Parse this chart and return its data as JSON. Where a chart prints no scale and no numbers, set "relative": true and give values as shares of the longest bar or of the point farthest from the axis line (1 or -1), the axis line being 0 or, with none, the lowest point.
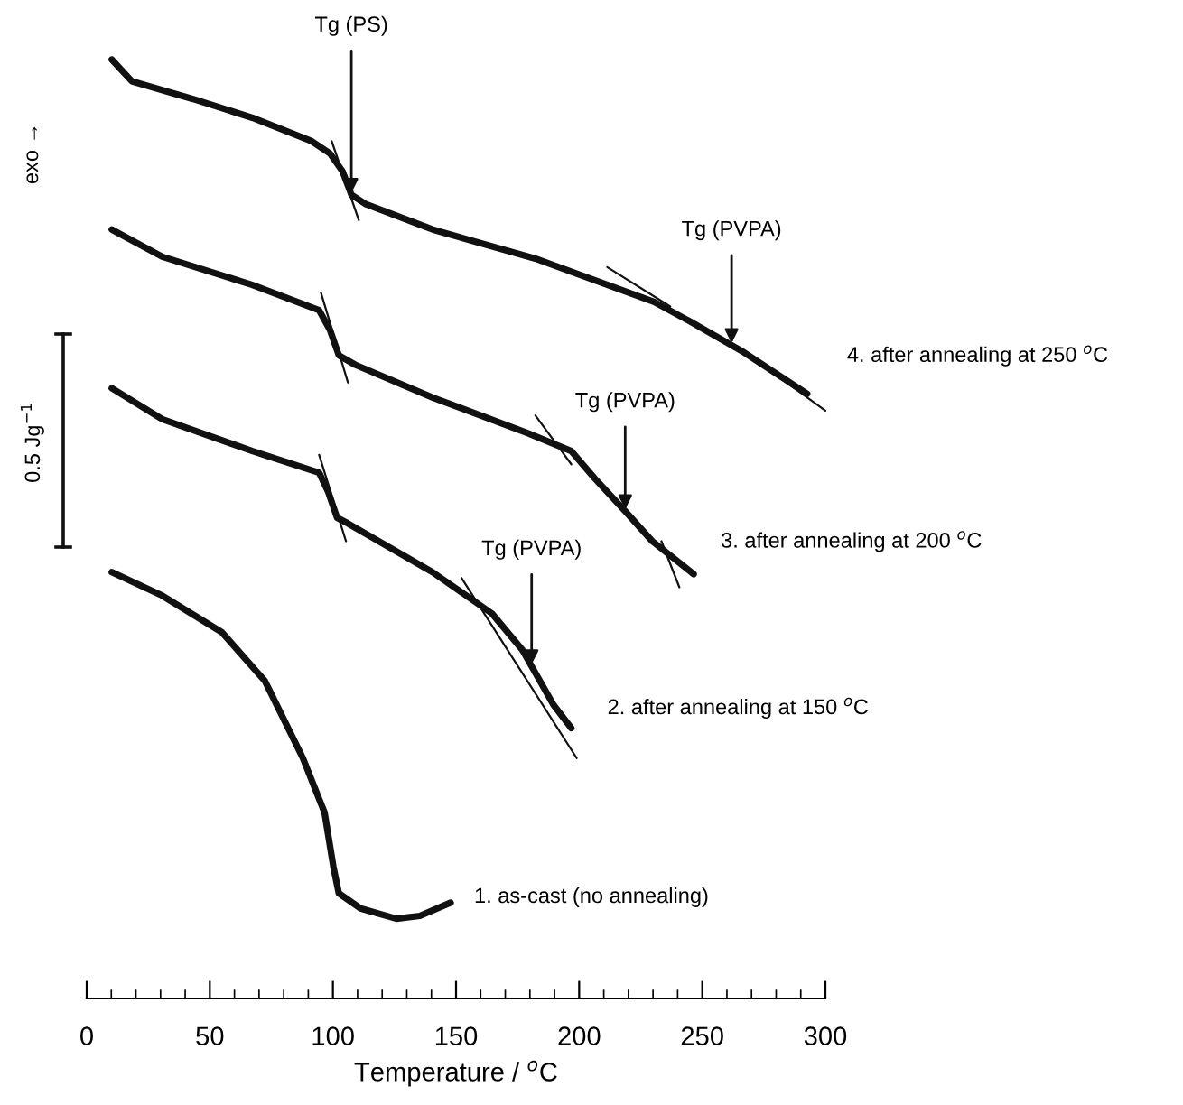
{
  "chart_data": {
    "type": "line",
    "relative": true,
    "xlabel": "Temperature / $^{o}$C",
    "xlim": [
      0,
      300
    ],
    "xticks": [
      0,
      50,
      100,
      150,
      200,
      250,
      300
    ],
    "grid": false,
    "legend": false,
    "marker": "none",
    "line_style": "solid",
    "series": [
      {
        "name": "4. after annealing at 250 $^{o}$C",
        "color": "#111111",
        "x": [
          10.2,
          18.3,
          43.2,
          67.3,
          91.4,
          98.8,
          103.9,
          107.5,
          113.4,
          140.5,
          182.2,
          230.4,
          245.1,
          267.0,
          292.6
        ],
        "values": [
          1.0,
          0.977,
          0.958,
          0.938,
          0.913,
          0.9,
          0.881,
          0.856,
          0.846,
          0.819,
          0.788,
          0.742,
          0.721,
          0.688,
          0.644
        ]
      },
      {
        "name": "3. after annealing at 200 $^{o}$C",
        "color": "#111111",
        "x": [
          10.2,
          30.7,
          67.3,
          94.4,
          98.8,
          102.4,
          109.0,
          140.5,
          179.2,
          196.8,
          206.3,
          218.7,
          229.7,
          246.5
        ],
        "values": [
          0.819,
          0.79,
          0.76,
          0.733,
          0.712,
          0.685,
          0.675,
          0.64,
          0.602,
          0.583,
          0.554,
          0.519,
          0.487,
          0.452
        ]
      },
      {
        "name": "2. after annealing at 150 $^{o}$C",
        "color": "#111111",
        "x": [
          10.2,
          30.7,
          67.3,
          94.4,
          98.0,
          101.7,
          106.1,
          140.5,
          164.6,
          177.0,
          189.5,
          196.8
        ],
        "values": [
          0.65,
          0.617,
          0.583,
          0.56,
          0.54,
          0.512,
          0.506,
          0.454,
          0.41,
          0.371,
          0.313,
          0.288
        ]
      },
      {
        "name": "1. as-cast (no annealing)",
        "color": "#111111",
        "x": [
          10.2,
          30.7,
          54.9,
          72.4,
          87.8,
          96.6,
          100.2,
          102.4,
          111.2,
          125.8,
          135.3,
          147.8
        ],
        "values": [
          0.454,
          0.429,
          0.39,
          0.338,
          0.256,
          0.198,
          0.14,
          0.112,
          0.096,
          0.085,
          0.088,
          0.102
        ]
      },
      {
        "type": "line",
        "color": "#111111",
        "x": [
          99.5,
          110.5
        ],
        "values": [
          0.913,
          0.829
        ]
      },
      {
        "type": "line",
        "color": "#111111",
        "x": [
          211.4,
          237.0
        ],
        "values": [
          0.779,
          0.737
        ]
      },
      {
        "type": "line",
        "color": "#111111",
        "x": [
          272.1,
          300.0
        ],
        "values": [
          0.679,
          0.626
        ]
      },
      {
        "type": "line",
        "color": "#111111",
        "x": [
          95.1,
          106.1
        ],
        "values": [
          0.752,
          0.656
        ]
      },
      {
        "type": "line",
        "color": "#111111",
        "x": [
          182.2,
          196.8
        ],
        "values": [
          0.621,
          0.569
        ]
      },
      {
        "type": "line",
        "color": "#111111",
        "x": [
          233.4,
          240.7
        ],
        "values": [
          0.487,
          0.438
        ]
      },
      {
        "type": "line",
        "color": "#111111",
        "x": [
          94.4,
          105.3
        ],
        "values": [
          0.579,
          0.487
        ]
      },
      {
        "type": "line",
        "color": "#111111",
        "x": [
          152.2,
          199.0
        ],
        "values": [
          0.448,
          0.256
        ]
      }
    ],
    "annotations": [
      "exo →",
      "0.5 Jg$^{−1}$",
      {
        "text": "Tg (PS)",
        "x": 107.5,
        "y": 0.856
      },
      {
        "text": "Tg (PVPA)",
        "x": 261.9,
        "y": 0.696
      },
      {
        "text": "Tg (PVPA)",
        "x": 218.7,
        "y": 0.519
      },
      {
        "text": "Tg (PVPA)",
        "x": 180.7,
        "y": 0.354
      }
    ]
  }
}
